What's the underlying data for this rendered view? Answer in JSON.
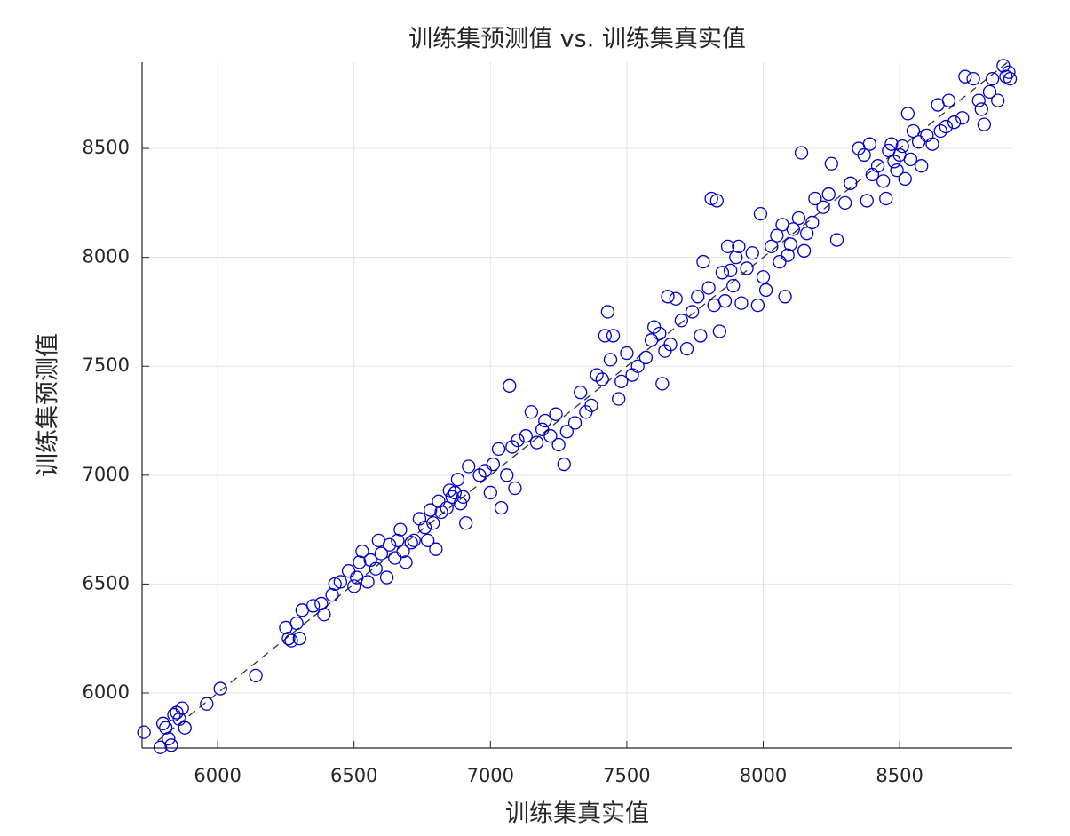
{
  "chart_data": {
    "type": "scatter",
    "title": "训练集预测值 vs. 训练集真实值",
    "xlabel": "训练集真实值",
    "ylabel": "训练集预测值",
    "xlim": [
      5723,
      8913
    ],
    "ylim": [
      5747,
      8896
    ],
    "xticks": [
      6000,
      6500,
      7000,
      7500,
      8000,
      8500
    ],
    "yticks": [
      6000,
      6500,
      7000,
      7500,
      8000,
      8500
    ],
    "grid": true,
    "color": "#0000cc",
    "reference_line": [
      5780,
      8900
    ],
    "x": [
      5730,
      5790,
      5800,
      5810,
      5820,
      5830,
      5840,
      5860,
      5870,
      5880,
      5850,
      5960,
      6010,
      6140,
      6250,
      6260,
      6270,
      6290,
      6300,
      6310,
      6350,
      6380,
      6390,
      6420,
      6430,
      6450,
      6480,
      6500,
      6510,
      6520,
      6530,
      6550,
      6560,
      6580,
      6590,
      6600,
      6620,
      6630,
      6650,
      6660,
      6670,
      6680,
      6690,
      6710,
      6720,
      6740,
      6760,
      6770,
      6780,
      6790,
      6800,
      6810,
      6820,
      6840,
      6850,
      6860,
      6870,
      6880,
      6890,
      6900,
      6910,
      6920,
      6960,
      6980,
      7000,
      7010,
      7030,
      7040,
      7060,
      7070,
      7080,
      7090,
      7100,
      7130,
      7150,
      7170,
      7190,
      7200,
      7220,
      7240,
      7250,
      7270,
      7280,
      7310,
      7330,
      7350,
      7370,
      7390,
      7410,
      7420,
      7430,
      7450,
      7440,
      7470,
      7480,
      7500,
      7520,
      7540,
      7570,
      7590,
      7600,
      7620,
      7630,
      7640,
      7650,
      7660,
      7680,
      7700,
      7720,
      7740,
      7760,
      7770,
      7780,
      7800,
      7810,
      7820,
      7830,
      7840,
      7850,
      7860,
      7870,
      7880,
      7890,
      7900,
      7910,
      7920,
      7940,
      7960,
      7980,
      7990,
      8000,
      8010,
      8030,
      8050,
      8060,
      8070,
      8080,
      8090,
      8100,
      8110,
      8130,
      8140,
      8150,
      8160,
      8180,
      8190,
      8220,
      8240,
      8250,
      8270,
      8300,
      8320,
      8350,
      8370,
      8380,
      8390,
      8400,
      8420,
      8440,
      8450,
      8460,
      8470,
      8480,
      8490,
      8500,
      8510,
      8520,
      8530,
      8540,
      8550,
      8570,
      8580,
      8600,
      8620,
      8640,
      8650,
      8670,
      8680,
      8700,
      8730,
      8740,
      8770,
      8790,
      8800,
      8810,
      8830,
      8840,
      8860,
      8880,
      8890,
      8900,
      8905
    ],
    "values": [
      5820,
      5750,
      5860,
      5840,
      5790,
      5760,
      5900,
      5880,
      5930,
      5840,
      5910,
      5950,
      6020,
      6080,
      6300,
      6250,
      6240,
      6320,
      6250,
      6380,
      6400,
      6410,
      6360,
      6450,
      6500,
      6510,
      6560,
      6490,
      6530,
      6600,
      6650,
      6510,
      6610,
      6570,
      6700,
      6640,
      6530,
      6680,
      6620,
      6700,
      6750,
      6650,
      6600,
      6690,
      6700,
      6800,
      6760,
      6700,
      6840,
      6780,
      6660,
      6880,
      6830,
      6850,
      6930,
      6900,
      6920,
      6980,
      6870,
      6900,
      6780,
      7040,
      7000,
      7020,
      6920,
      7050,
      7120,
      6850,
      7000,
      7410,
      7130,
      6940,
      7160,
      7180,
      7290,
      7150,
      7210,
      7250,
      7180,
      7280,
      7140,
      7050,
      7200,
      7240,
      7380,
      7290,
      7320,
      7460,
      7440,
      7640,
      7750,
      7640,
      7530,
      7350,
      7430,
      7560,
      7460,
      7500,
      7540,
      7620,
      7680,
      7650,
      7420,
      7570,
      7820,
      7600,
      7810,
      7710,
      7580,
      7750,
      7820,
      7640,
      7980,
      7860,
      8270,
      7780,
      8260,
      7660,
      7930,
      7800,
      8050,
      7940,
      7870,
      8000,
      8050,
      7790,
      7950,
      8020,
      7780,
      8200,
      7910,
      7850,
      8050,
      8100,
      7980,
      8150,
      7820,
      8010,
      8060,
      8130,
      8180,
      8480,
      8030,
      8110,
      8160,
      8270,
      8230,
      8290,
      8430,
      8080,
      8250,
      8340,
      8500,
      8470,
      8260,
      8520,
      8380,
      8420,
      8350,
      8270,
      8490,
      8520,
      8440,
      8400,
      8470,
      8510,
      8360,
      8660,
      8450,
      8580,
      8530,
      8420,
      8560,
      8520,
      8700,
      8580,
      8600,
      8720,
      8620,
      8640,
      8830,
      8820,
      8720,
      8680,
      8610,
      8760,
      8820,
      8720,
      8880,
      8830,
      8850,
      8820
    ]
  }
}
